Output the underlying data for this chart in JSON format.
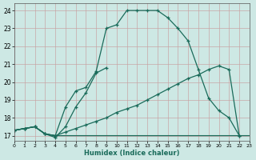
{
  "xlabel": "Humidex (Indice chaleur)",
  "bg_color": "#cde8e4",
  "grid_color": "#c8a0a0",
  "line_color": "#1a6b5a",
  "curve_main_x": [
    0,
    1,
    2,
    3,
    4,
    5,
    6,
    7,
    8,
    9,
    10,
    11,
    12,
    13,
    14,
    15,
    16,
    17,
    18,
    19,
    20,
    21,
    22
  ],
  "curve_main_y": [
    17.3,
    17.4,
    17.5,
    17.1,
    17.0,
    18.6,
    19.5,
    19.7,
    20.6,
    23.0,
    23.2,
    24.0,
    24.0,
    24.0,
    24.0,
    23.6,
    23.0,
    22.3,
    20.7,
    19.1,
    18.4,
    18.0,
    17.0
  ],
  "curve_short_x": [
    0,
    1,
    2,
    3,
    4,
    5,
    6,
    7,
    8,
    9
  ],
  "curve_short_y": [
    17.3,
    17.4,
    17.5,
    17.1,
    16.9,
    17.5,
    18.6,
    19.4,
    20.5,
    20.8
  ],
  "line_diag_x": [
    0,
    1,
    2,
    3,
    4,
    5,
    6,
    7,
    8,
    9,
    10,
    11,
    12,
    13,
    14,
    15,
    16,
    17,
    18,
    19,
    20,
    21,
    22
  ],
  "line_diag_y": [
    17.3,
    17.4,
    17.5,
    17.1,
    17.0,
    17.2,
    17.4,
    17.6,
    17.8,
    18.0,
    18.3,
    18.5,
    18.7,
    19.0,
    19.3,
    19.6,
    19.9,
    20.2,
    20.4,
    20.7,
    20.9,
    20.7,
    17.0
  ],
  "line_flat_x": [
    0,
    1,
    2,
    3,
    4,
    5,
    6,
    7,
    8,
    9,
    10,
    11,
    12,
    13,
    14,
    15,
    16,
    17,
    18,
    19,
    20,
    21,
    22,
    23
  ],
  "line_flat_y": [
    17.3,
    17.4,
    17.5,
    17.1,
    17.0,
    17.0,
    17.0,
    17.0,
    17.0,
    17.0,
    17.0,
    17.0,
    17.0,
    17.0,
    17.0,
    17.0,
    17.0,
    17.0,
    17.0,
    17.0,
    17.0,
    17.0,
    17.0,
    17.0
  ],
  "xlim": [
    0,
    23
  ],
  "ylim": [
    16.7,
    24.4
  ],
  "xticks": [
    0,
    1,
    2,
    3,
    4,
    5,
    6,
    7,
    8,
    9,
    10,
    11,
    12,
    13,
    14,
    15,
    16,
    17,
    18,
    19,
    20,
    21,
    22,
    23
  ],
  "yticks": [
    17,
    18,
    19,
    20,
    21,
    22,
    23,
    24
  ]
}
